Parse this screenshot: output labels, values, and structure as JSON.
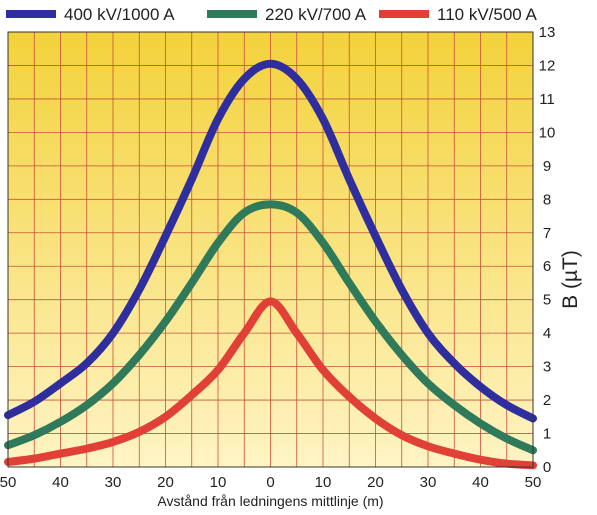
{
  "chart_data": {
    "type": "line",
    "title": "",
    "xlabel": "Avstånd från ledningens mittlinje (m)",
    "ylabel": "B (µT)",
    "x_tick_labels": [
      "50",
      "40",
      "30",
      "20",
      "10",
      "0",
      "10",
      "20",
      "30",
      "40",
      "50"
    ],
    "x_ticks": [
      -50,
      -40,
      -30,
      -20,
      -10,
      0,
      10,
      20,
      30,
      40,
      50
    ],
    "y_ticks": [
      0,
      1,
      2,
      3,
      4,
      5,
      6,
      7,
      8,
      9,
      10,
      11,
      12,
      13
    ],
    "xlim": [
      -50,
      50
    ],
    "ylim": [
      0,
      13
    ],
    "grid": true,
    "legend_position": "top",
    "background_gradient": [
      "#f3d23a",
      "#fff4c4"
    ],
    "grid_color": "#c8503a",
    "x": [
      -50,
      -45,
      -40,
      -35,
      -30,
      -25,
      -20,
      -15,
      -10,
      -5,
      0,
      5,
      10,
      15,
      20,
      25,
      30,
      35,
      40,
      45,
      50
    ],
    "series": [
      {
        "name": "400 kV/1000 A",
        "color": "#2e2e9e",
        "values": [
          1.55,
          1.95,
          2.5,
          3.1,
          4.0,
          5.3,
          6.9,
          8.6,
          10.4,
          11.6,
          12.05,
          11.6,
          10.4,
          8.6,
          6.9,
          5.3,
          4.0,
          3.1,
          2.4,
          1.85,
          1.45
        ]
      },
      {
        "name": "220 kV/700 A",
        "color": "#2f7a5a",
        "values": [
          0.65,
          0.95,
          1.35,
          1.85,
          2.5,
          3.35,
          4.35,
          5.5,
          6.7,
          7.6,
          7.85,
          7.6,
          6.7,
          5.5,
          4.35,
          3.35,
          2.5,
          1.85,
          1.3,
          0.85,
          0.5
        ]
      },
      {
        "name": "110 kV/500 A",
        "color": "#e04036",
        "values": [
          0.15,
          0.25,
          0.4,
          0.55,
          0.75,
          1.05,
          1.5,
          2.15,
          2.9,
          4.0,
          4.95,
          4.0,
          2.9,
          2.1,
          1.45,
          0.95,
          0.62,
          0.4,
          0.22,
          0.1,
          0.05
        ]
      }
    ]
  }
}
